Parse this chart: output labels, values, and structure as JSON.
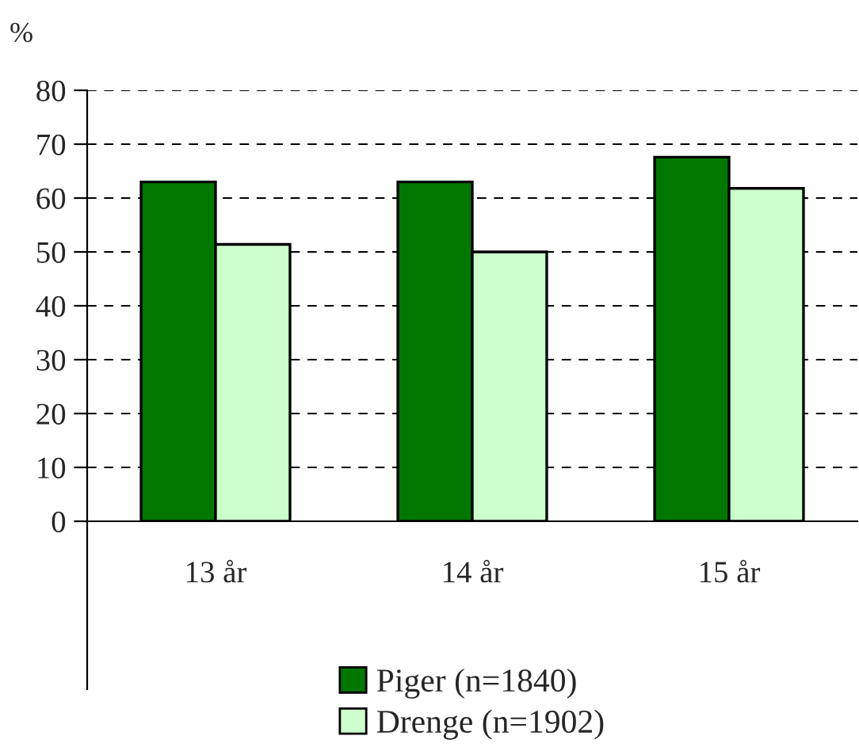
{
  "chart_data": {
    "type": "bar",
    "ylabel": "%",
    "categories": [
      "13 år",
      "14 år",
      "15 år"
    ],
    "series": [
      {
        "name": "Piger (n=1840)",
        "color": "#007800",
        "values": [
          63,
          63,
          67.6
        ]
      },
      {
        "name": "Drenge (n=1902)",
        "color": "#ccffcc",
        "values": [
          51.4,
          50,
          61.8
        ]
      }
    ],
    "ylim": [
      0,
      80
    ],
    "yticks": [
      0,
      10,
      20,
      30,
      40,
      50,
      60,
      70,
      80
    ],
    "grid": "y",
    "legend": "bottom"
  }
}
